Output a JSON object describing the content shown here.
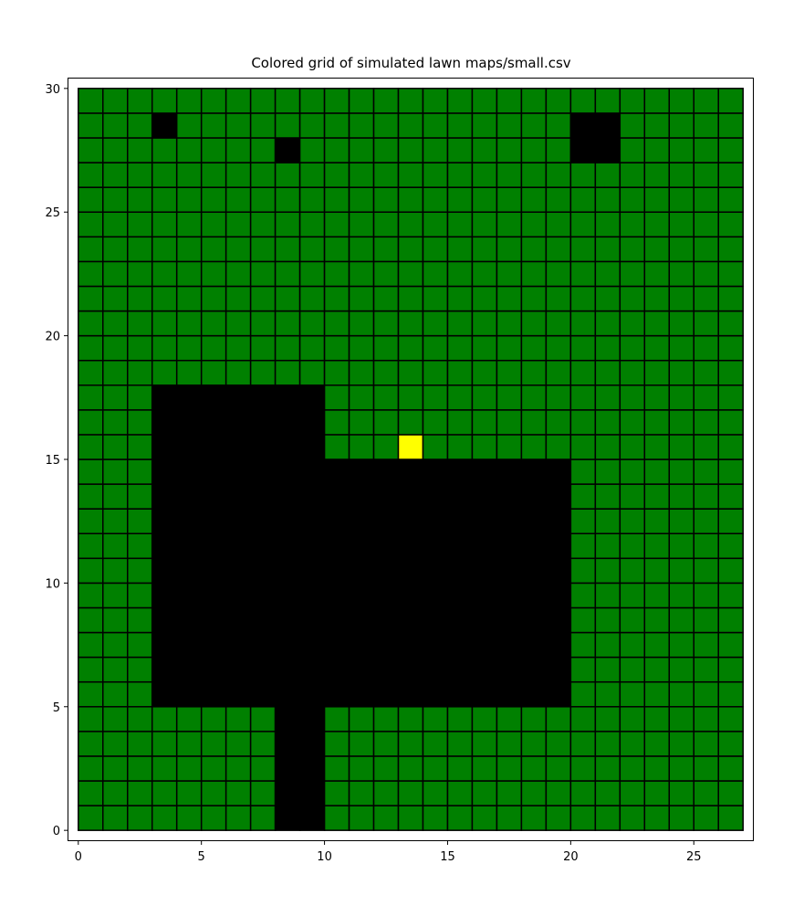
{
  "chart_data": {
    "type": "heatmap",
    "title": "Colored grid of simulated lawn maps/small.csv",
    "xlabel": "",
    "ylabel": "",
    "grid_cols": 27,
    "grid_rows": 30,
    "xlim": [
      -0.4,
      27.4
    ],
    "ylim": [
      -0.4,
      30.4
    ],
    "x_ticks": [
      0,
      5,
      10,
      15,
      20,
      25
    ],
    "y_ticks": [
      0,
      5,
      10,
      15,
      20,
      25,
      30
    ],
    "x_tick_labels": [
      "0",
      "5",
      "10",
      "15",
      "20",
      "25"
    ],
    "y_tick_labels": [
      "0",
      "5",
      "10",
      "15",
      "20",
      "25",
      "30"
    ],
    "legend": "none",
    "colors": {
      "grass": "#008000",
      "obstacle": "#000000",
      "mower": "#ffff00",
      "cell_border": "#000000"
    },
    "default_cell": "grass",
    "obstacles": [
      {
        "x": [
          3,
          4
        ],
        "y": [
          28,
          29
        ]
      },
      {
        "x": [
          8,
          9
        ],
        "y": [
          27,
          28
        ]
      },
      {
        "x": [
          20,
          22
        ],
        "y": [
          27,
          29
        ]
      },
      {
        "x": [
          3,
          10
        ],
        "y": [
          5,
          18
        ]
      },
      {
        "x": [
          10,
          20
        ],
        "y": [
          5,
          15
        ]
      },
      {
        "x": [
          8,
          10
        ],
        "y": [
          0,
          5
        ]
      }
    ],
    "mower": {
      "x": [
        13,
        14
      ],
      "y": [
        15,
        16
      ]
    }
  }
}
